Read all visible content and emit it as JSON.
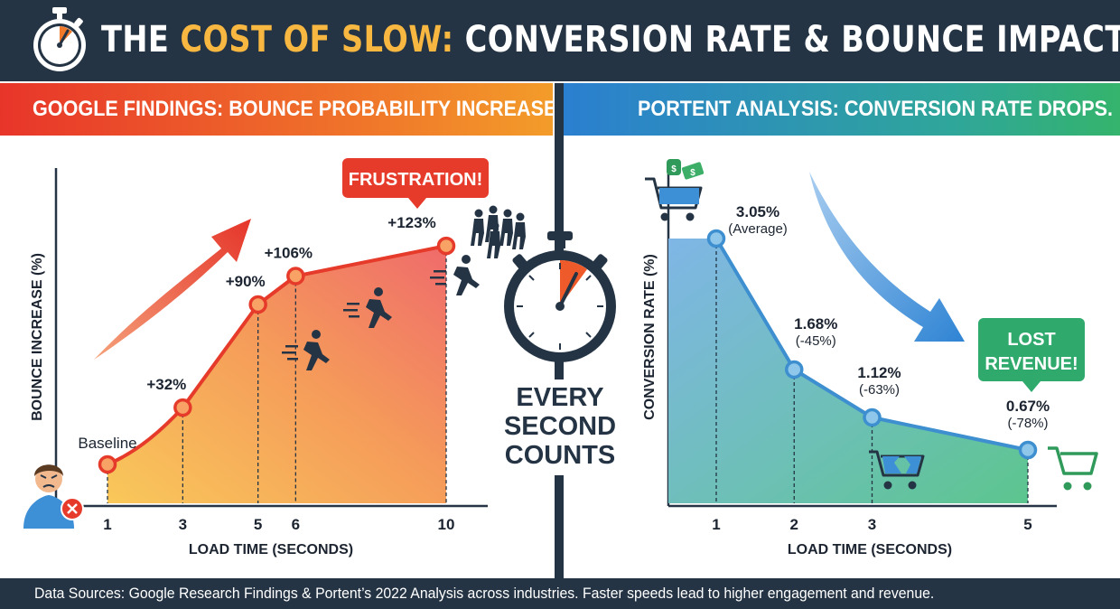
{
  "header": {
    "title_part1": "THE ",
    "title_accent": "COST OF SLOW:",
    "title_part2": " CONVERSION RATE & BOUNCE IMPACT",
    "icon": "stopwatch-icon"
  },
  "left_panel": {
    "heading": "GOOGLE FINDINGS: BOUNCE PROBABILITY INCREASES.",
    "callout": "FRUSTRATION!"
  },
  "right_panel": {
    "heading": "PORTENT ANALYSIS: CONVERSION RATE DROPS.",
    "callout_line1": "LOST",
    "callout_line2": "REVENUE!"
  },
  "center": {
    "line1": "EVERY",
    "line2": "SECOND",
    "line3": "COUNTS"
  },
  "footer": {
    "text": "Data Sources: Google Research Findings & Portent’s 2022 Analysis across industries. Faster speeds lead to higher engagement and revenue."
  },
  "colors": {
    "dark_navy": "#243444",
    "accent_yellow": "#f7b740",
    "bounce_red": "#e8352a",
    "bounce_orange": "#f39c2a",
    "conversion_blue": "#2b7fd0",
    "conversion_green": "#34b46c"
  },
  "chart_data": [
    {
      "type": "area",
      "title": "Google Findings: Bounce Probability Increases.",
      "xlabel": "LOAD TIME (SECONDS)",
      "ylabel": "BOUNCE INCREASE (%)",
      "x": [
        1,
        3,
        5,
        6,
        10
      ],
      "values": [
        0,
        32,
        90,
        106,
        123
      ],
      "labels": [
        "Baseline",
        "+32%",
        "+90%",
        "+106%",
        "+123%"
      ],
      "x_ticks": [
        "1",
        "3",
        "5",
        "6",
        "10"
      ],
      "ylim": [
        0,
        180
      ]
    },
    {
      "type": "area",
      "title": "Portent Analysis: Conversion Rate Drops.",
      "xlabel": "LOAD TIME (SECONDS)",
      "ylabel": "CONVERSION RATE (%)",
      "x": [
        1,
        2,
        3,
        5
      ],
      "values": [
        3.05,
        1.68,
        1.12,
        0.67
      ],
      "labels": [
        "3.05%",
        "1.68%",
        "1.12%",
        "0.67%"
      ],
      "sublabels": [
        "(Average)",
        "(-45%)",
        "(-63%)",
        "(-78%)"
      ],
      "x_ticks": [
        "1",
        "2",
        "3",
        "5"
      ],
      "ylim": [
        0,
        3.4
      ]
    }
  ]
}
